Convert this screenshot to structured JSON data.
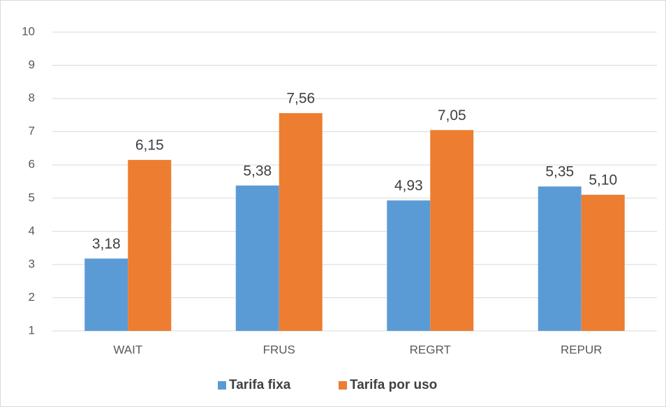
{
  "chart_data": {
    "type": "bar",
    "categories": [
      "WAIT",
      "FRUS",
      "REGRT",
      "REPUR"
    ],
    "series": [
      {
        "name": "Tarifa fixa",
        "color": "#5b9bd5",
        "values": [
          3.18,
          5.38,
          4.93,
          5.35
        ],
        "value_labels": [
          "3,18",
          "5,38",
          "4,93",
          "5,35"
        ]
      },
      {
        "name": "Tarifa por uso",
        "color": "#ed7d31",
        "values": [
          6.15,
          7.56,
          7.05,
          5.1
        ],
        "value_labels": [
          "6,15",
          "7,56",
          "7,05",
          "5,10"
        ]
      }
    ],
    "ylim": [
      1,
      10
    ],
    "yticks": [
      1,
      2,
      3,
      4,
      5,
      6,
      7,
      8,
      9,
      10
    ],
    "grid": true,
    "legend": "bottom"
  }
}
